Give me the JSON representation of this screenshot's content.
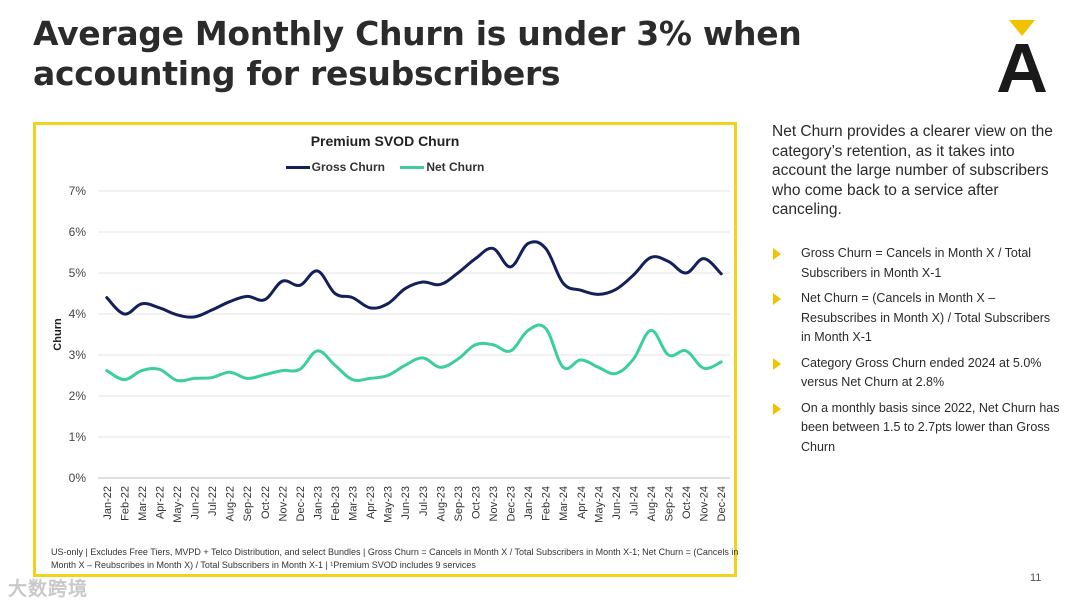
{
  "slide": {
    "title": "Average Monthly Churn is under 3% when accounting for resubscribers",
    "page_number": "11",
    "watermark": "大数跨境",
    "logo": {
      "letter": "A",
      "icon": "brand-logo-icon",
      "accent_color": "#f2c200",
      "text_color": "#1a1a1a"
    }
  },
  "right_panel": {
    "intro": "Net Churn provides a clearer view on the category’s retention, as it takes into account the large number of subscribers who come back to a service after canceling.",
    "bullets": [
      "Gross Churn = Cancels in Month X / Total Subscribers in Month X-1",
      "Net Churn = (Cancels in Month X – Resubscribes in Month X) / Total Subscribers in Month X-1",
      "Category Gross Churn ended 2024 at 5.0% versus Net Churn at 2.8%",
      "On a monthly basis since 2022, Net Churn has been between 1.5 to 2.7pts lower than Gross Churn"
    ],
    "bullet_icon": "triangle-bullet-icon",
    "bullet_color": "#f2c200"
  },
  "footnote": "US-only | Excludes Free Tiers, MVPD + Telco Distribution, and select Bundles | Gross Churn = Cancels in Month X / Total Subscribers in Month X-1; Net Churn = (Cancels in Month X – Reubscribes in Month X) / Total Subscribers in Month X-1 | ¹Premium SVOD includes 9 services",
  "chart_data": {
    "type": "line",
    "title": "Premium SVOD Churn",
    "xlabel": "",
    "ylabel": "Churn",
    "ylim": [
      0,
      7
    ],
    "yticks": [
      0,
      1,
      2,
      3,
      4,
      5,
      6,
      7
    ],
    "ytick_labels": [
      "0%",
      "1%",
      "2%",
      "3%",
      "4%",
      "5%",
      "6%",
      "7%"
    ],
    "grid": true,
    "legend_position": "top-center",
    "border_color": "#f2d31b",
    "categories": [
      "Jan-22",
      "Feb-22",
      "Mar-22",
      "Apr-22",
      "May-22",
      "Jun-22",
      "Jul-22",
      "Aug-22",
      "Sep-22",
      "Oct-22",
      "Nov-22",
      "Dec-22",
      "Jan-23",
      "Feb-23",
      "Mar-23",
      "Apr-23",
      "May-23",
      "Jun-23",
      "Jul-23",
      "Aug-23",
      "Sep-23",
      "Oct-23",
      "Nov-23",
      "Dec-23",
      "Jan-24",
      "Feb-24",
      "Mar-24",
      "Apr-24",
      "May-24",
      "Jun-24",
      "Jul-24",
      "Aug-24",
      "Sep-24",
      "Oct-24",
      "Nov-24",
      "Dec-24"
    ],
    "series": [
      {
        "name": "Gross Churn",
        "color": "#14205a",
        "values": [
          4.4,
          4.0,
          4.25,
          4.15,
          3.98,
          3.93,
          4.1,
          4.3,
          4.43,
          4.35,
          4.8,
          4.7,
          5.05,
          4.5,
          4.4,
          4.15,
          4.25,
          4.62,
          4.78,
          4.72,
          5.0,
          5.35,
          5.6,
          5.15,
          5.72,
          5.6,
          4.75,
          4.58,
          4.48,
          4.6,
          4.95,
          5.38,
          5.28,
          5.0,
          5.35,
          4.98
        ]
      },
      {
        "name": "Net Churn",
        "color": "#3ccf9c",
        "values": [
          2.62,
          2.4,
          2.62,
          2.65,
          2.38,
          2.43,
          2.45,
          2.58,
          2.43,
          2.52,
          2.62,
          2.65,
          3.1,
          2.75,
          2.4,
          2.43,
          2.5,
          2.75,
          2.93,
          2.7,
          2.9,
          3.25,
          3.25,
          3.1,
          3.6,
          3.65,
          2.7,
          2.88,
          2.7,
          2.55,
          2.9,
          3.6,
          3.0,
          3.1,
          2.68,
          2.83
        ]
      }
    ]
  }
}
